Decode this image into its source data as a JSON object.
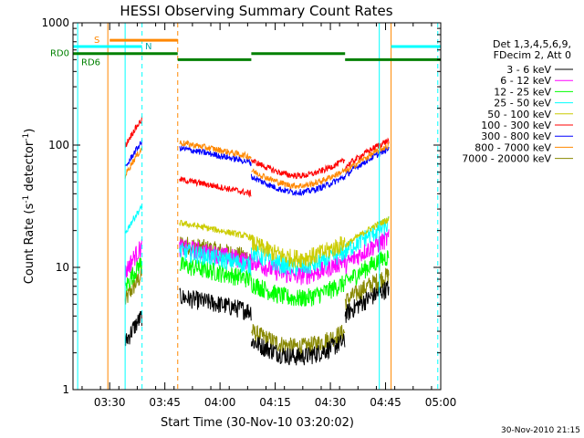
{
  "chart_data": {
    "type": "line",
    "title": "HESSI Observing Summary Count Rates",
    "xlabel": "Start Time (30-Nov-10 03:20:02)",
    "ylabel_main": "Count Rate (s",
    "ylabel_sup1": "-1",
    "ylabel_mid": " detector",
    "ylabel_sup2": "-1",
    "ylabel_end": ")",
    "x_ticks": [
      "03:30",
      "03:45",
      "04:00",
      "04:15",
      "04:30",
      "04:45",
      "05:00"
    ],
    "x_tick_minutes": [
      30,
      45,
      60,
      75,
      90,
      105,
      120
    ],
    "xlim_minutes": [
      20.03,
      120
    ],
    "y_scale": "log",
    "y_ticks": [
      "1",
      "10",
      "100",
      "1000"
    ],
    "y_tick_values": [
      1,
      10,
      100,
      1000
    ],
    "ylim": [
      1,
      1000
    ],
    "legend": {
      "position": "top-right",
      "header": [
        "Det 1,3,4,5,6,9,",
        "FDecim 2, Att 0"
      ]
    },
    "series": [
      {
        "name": "3 - 6 keV",
        "color": "#000000",
        "level": [
          3.2,
          5.5,
          2.5,
          5.5
        ]
      },
      {
        "name": "6 - 12 keV",
        "color": "#ff00ff",
        "level": [
          12,
          14,
          11.5,
          14
        ]
      },
      {
        "name": "12 - 25 keV",
        "color": "#00ff00",
        "level": [
          9,
          10,
          7.5,
          10
        ]
      },
      {
        "name": "25 - 50 keV",
        "color": "#00ffff",
        "level": [
          25,
          13,
          13.5,
          18
        ]
      },
      {
        "name": "50 - 100 keV",
        "color": "#cccc00",
        "level": [
          0,
          22,
          16,
          20
        ]
      },
      {
        "name": "100 - 300 keV",
        "color": "#ff0000",
        "level": [
          130,
          50,
          75,
          88
        ]
      },
      {
        "name": "300 - 800 keV",
        "color": "#0000ff",
        "level": [
          85,
          90,
          55,
          75
        ]
      },
      {
        "name": "800 - 7000 keV",
        "color": "#ff8800",
        "level": [
          75,
          100,
          62,
          80
        ]
      },
      {
        "name": "7000 - 20000 keV",
        "color": "#888800",
        "level": [
          7,
          15,
          3,
          7
        ]
      }
    ],
    "flags": {
      "S": {
        "label": "S",
        "color": "#ff8800",
        "start": 30,
        "end": 48.5,
        "y": 720
      },
      "N": {
        "label": "N",
        "color": "#00ffff",
        "segments": [
          [
            20.03,
            38.8
          ],
          [
            106.5,
            120
          ]
        ],
        "y": 640
      },
      "RD0": {
        "label": "RD0",
        "color": "#008000",
        "segments": [
          [
            20.03,
            48.5
          ],
          [
            48.5,
            68.5
          ],
          [
            68.5,
            94
          ],
          [
            94,
            120
          ]
        ],
        "y_values": [
          560,
          500,
          560,
          500
        ]
      },
      "RD6": {
        "label": "RD6",
        "color": "#008000"
      }
    },
    "markers": [
      {
        "minute": 21.3,
        "color": "#00ffff",
        "style": "solid"
      },
      {
        "minute": 29.5,
        "color": "#ff8800",
        "style": "solid"
      },
      {
        "minute": 34.2,
        "color": "#00ffff",
        "style": "solid"
      },
      {
        "minute": 38.8,
        "color": "#00ffff",
        "style": "dashed"
      },
      {
        "minute": 48.5,
        "color": "#ff8800",
        "style": "dashed"
      },
      {
        "minute": 103.3,
        "color": "#00ffff",
        "style": "solid"
      },
      {
        "minute": 106.5,
        "color": "#ff8800",
        "style": "solid"
      },
      {
        "minute": 119.2,
        "color": "#00ffff",
        "style": "dashed"
      }
    ],
    "timestamp": "30-Nov-2010 21:15"
  }
}
